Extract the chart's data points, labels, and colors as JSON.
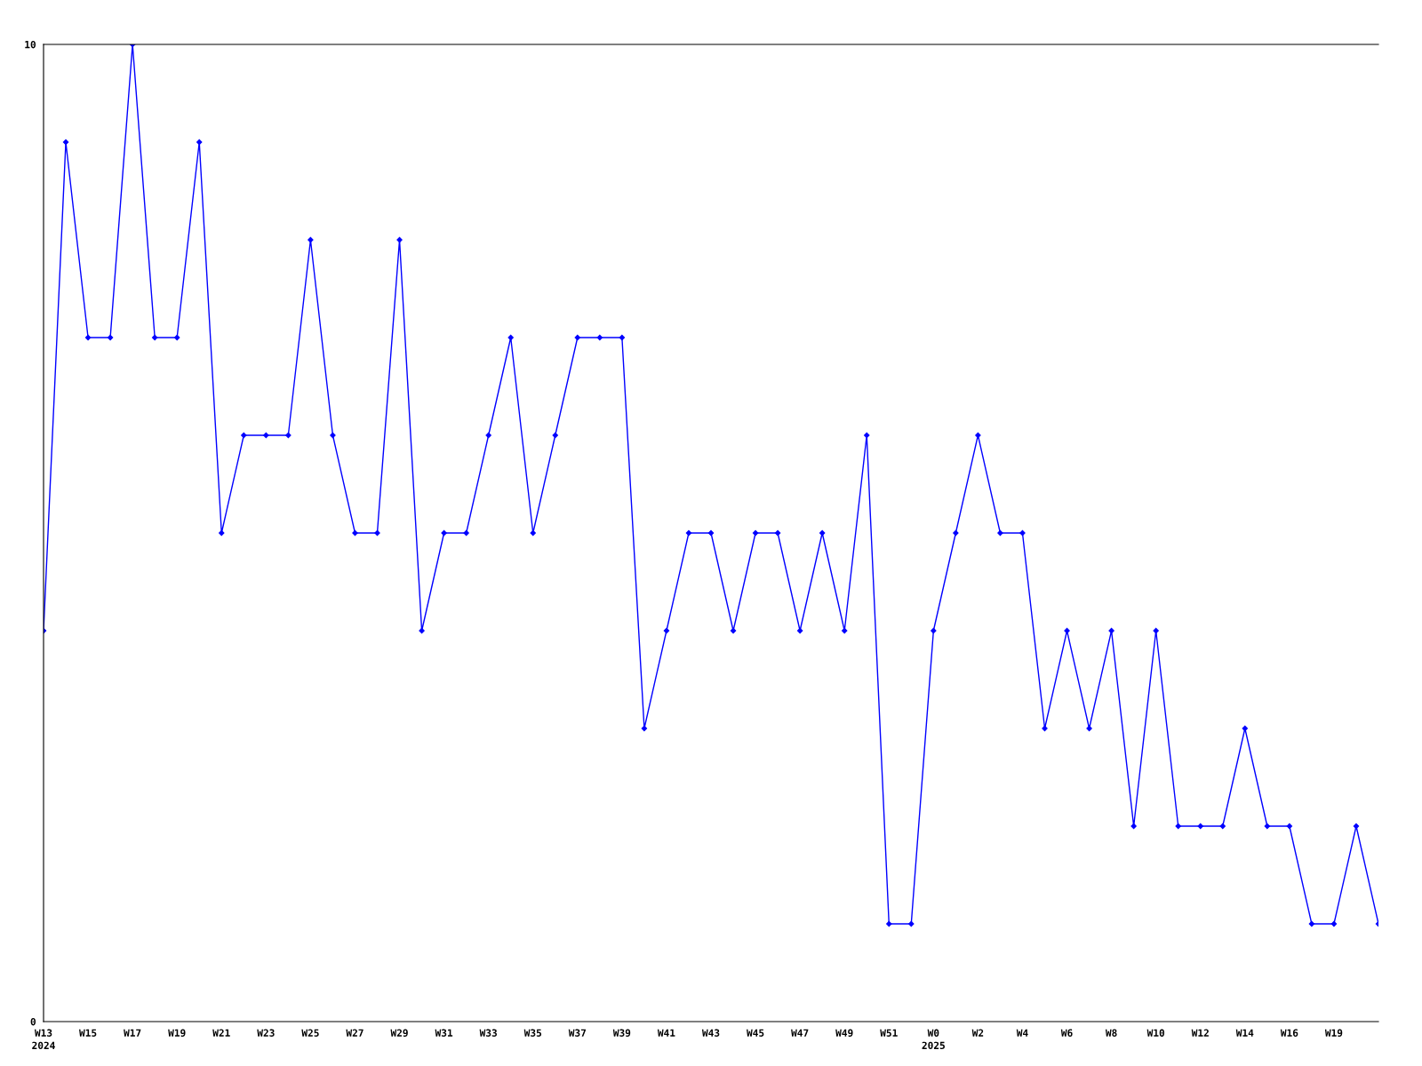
{
  "chart_data": {
    "type": "line",
    "categories": [
      "W13\n2024",
      null,
      "W15",
      null,
      "W17",
      null,
      "W19",
      null,
      "W21",
      null,
      "W23",
      null,
      "W25",
      null,
      "W27",
      null,
      "W29",
      null,
      "W31",
      null,
      "W33",
      null,
      "W35",
      null,
      "W37",
      null,
      "W39",
      null,
      "W41",
      null,
      "W43",
      null,
      "W45",
      null,
      "W47",
      null,
      "W49",
      null,
      "W51",
      null,
      "W0\n2025",
      null,
      "W2",
      null,
      "W4",
      null,
      "W6",
      null,
      "W8",
      null,
      "W10",
      null,
      "W12",
      null,
      "W14",
      null,
      "W16",
      null,
      "W19",
      null,
      null
    ],
    "series": [
      {
        "color": "#0000ff",
        "values": [
          4,
          9,
          7,
          7,
          10,
          7,
          7,
          9,
          5,
          6,
          6,
          6,
          8,
          6,
          5,
          5,
          8,
          4,
          5,
          5,
          6,
          7,
          5,
          6,
          7,
          7,
          7,
          3,
          4,
          5,
          5,
          4,
          5,
          5,
          4,
          5,
          4,
          6,
          1,
          1,
          4,
          5,
          6,
          5,
          5,
          3,
          4,
          3,
          4,
          2,
          4,
          2,
          2,
          2,
          3,
          2,
          2,
          1,
          1,
          2,
          1
        ]
      }
    ],
    "ylim": [
      0,
      10
    ],
    "yticks": [
      0,
      10
    ],
    "grid": false,
    "legend": false,
    "marker": "diamond",
    "line_style": "solid"
  }
}
